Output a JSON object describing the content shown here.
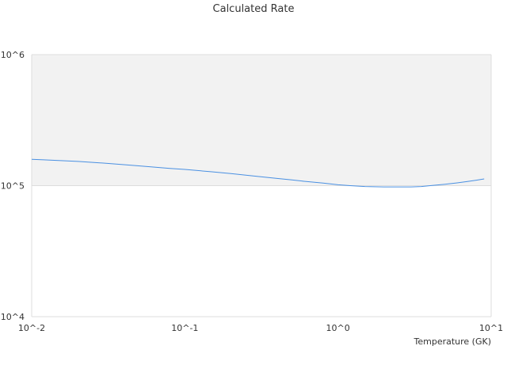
{
  "chart_data": {
    "type": "line",
    "title": "Calculated Rate",
    "xlabel": "Temperature (GK)",
    "ylabel": "",
    "x_scale": "log",
    "y_scale": "log",
    "xlim": [
      0.01,
      10
    ],
    "ylim": [
      10000,
      1000000
    ],
    "x_ticks": [
      {
        "value": 0.01,
        "label": "10^-2"
      },
      {
        "value": 0.1,
        "label": "10^-1"
      },
      {
        "value": 1,
        "label": "10^0"
      },
      {
        "value": 10,
        "label": "10^1"
      }
    ],
    "y_ticks": [
      {
        "value": 10000,
        "label": "10^4"
      },
      {
        "value": 100000,
        "label": "10^5"
      },
      {
        "value": 1000000,
        "label": "10^6"
      }
    ],
    "grid": true,
    "alternating_band_color": "#f2f2f2",
    "series": [
      {
        "color": "#4a90e2",
        "x": [
          0.01,
          0.012,
          0.015,
          0.02,
          0.025,
          0.03,
          0.04,
          0.05,
          0.06,
          0.08,
          0.1,
          0.15,
          0.2,
          0.3,
          0.4,
          0.5,
          0.6,
          0.8,
          1.0,
          1.2,
          1.5,
          2.0,
          2.5,
          3.0,
          3.5,
          4.0,
          5.0,
          6.0,
          7.0,
          8.0,
          9.0
        ],
        "y": [
          159000,
          157500,
          155500,
          153000,
          150500,
          148500,
          144500,
          141500,
          139000,
          135500,
          133000,
          127500,
          123500,
          117500,
          113500,
          110500,
          108000,
          104500,
          101500,
          100000,
          98500,
          97800,
          97800,
          97800,
          98500,
          100000,
          102500,
          105000,
          107500,
          110000,
          112500
        ]
      }
    ]
  }
}
